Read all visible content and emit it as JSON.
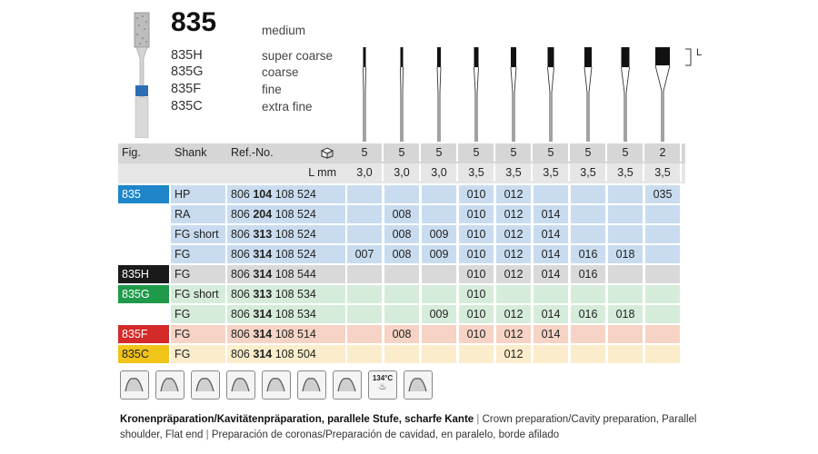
{
  "header": {
    "number": "835",
    "grade_default": "medium",
    "variants": [
      {
        "code": "835H",
        "grade": "super coarse"
      },
      {
        "code": "835G",
        "grade": "coarse"
      },
      {
        "code": "835F",
        "grade": "fine"
      },
      {
        "code": "835C",
        "grade": "extra fine"
      }
    ],
    "length_marker": "L"
  },
  "table": {
    "col_headers": {
      "fig": "Fig.",
      "shank": "Shank",
      "ref": "Ref.-No."
    },
    "pack_row": [
      "5",
      "5",
      "5",
      "5",
      "5",
      "5",
      "5",
      "5",
      "2"
    ],
    "lmm_label": "L mm",
    "lmm_row": [
      "3,0",
      "3,0",
      "3,0",
      "3,5",
      "3,5",
      "3,5",
      "3,5",
      "3,5",
      "3,5"
    ],
    "rows": [
      {
        "fig": "835",
        "shank": "HP",
        "ref_a": "806",
        "ref_b": "104",
        "ref_c": "108 524",
        "sizes": [
          "",
          "",
          "",
          "010",
          "012",
          "",
          "",
          "",
          "035"
        ],
        "fig_color": "#1e86c8",
        "row_color": "#c9dcef"
      },
      {
        "fig": "",
        "shank": "RA",
        "ref_a": "806",
        "ref_b": "204",
        "ref_c": "108 524",
        "sizes": [
          "",
          "008",
          "",
          "010",
          "012",
          "014",
          "",
          "",
          ""
        ],
        "fig_color": "",
        "row_color": "#c9dcef"
      },
      {
        "fig": "",
        "shank": "FG short",
        "ref_a": "806",
        "ref_b": "313",
        "ref_c": "108 524",
        "sizes": [
          "",
          "008",
          "009",
          "010",
          "012",
          "014",
          "",
          "",
          ""
        ],
        "fig_color": "",
        "row_color": "#c9dcef"
      },
      {
        "fig": "",
        "shank": "FG",
        "ref_a": "806",
        "ref_b": "314",
        "ref_c": "108 524",
        "sizes": [
          "007",
          "008",
          "009",
          "010",
          "012",
          "014",
          "016",
          "018",
          ""
        ],
        "fig_color": "",
        "row_color": "#c9dcef"
      },
      {
        "fig": "835H",
        "shank": "FG",
        "ref_a": "806",
        "ref_b": "314",
        "ref_c": "108 544",
        "sizes": [
          "",
          "",
          "",
          "010",
          "012",
          "014",
          "016",
          "",
          ""
        ],
        "fig_color": "#1a1a1a",
        "row_color": "#d9d9d9"
      },
      {
        "fig": "835G",
        "shank": "FG short",
        "ref_a": "806",
        "ref_b": "313",
        "ref_c": "108 534",
        "sizes": [
          "",
          "",
          "",
          "010",
          "",
          "",
          "",
          "",
          ""
        ],
        "fig_color": "#1f9a4b",
        "row_color": "#d6ecdb"
      },
      {
        "fig": "",
        "shank": "FG",
        "ref_a": "806",
        "ref_b": "314",
        "ref_c": "108 534",
        "sizes": [
          "",
          "",
          "009",
          "010",
          "012",
          "014",
          "016",
          "018",
          ""
        ],
        "fig_color": "",
        "row_color": "#d6ecdb"
      },
      {
        "fig": "835F",
        "shank": "FG",
        "ref_a": "806",
        "ref_b": "314",
        "ref_c": "108 514",
        "sizes": [
          "",
          "008",
          "",
          "010",
          "012",
          "014",
          "",
          "",
          ""
        ],
        "fig_color": "#d42a2a",
        "row_color": "#f6d3c4"
      },
      {
        "fig": "835C",
        "shank": "FG",
        "ref_a": "806",
        "ref_b": "314",
        "ref_c": "108 504",
        "sizes": [
          "",
          "",
          "",
          "",
          "012",
          "",
          "",
          "",
          ""
        ],
        "fig_color": "#f0c419",
        "row_color": "#fbeccb"
      }
    ]
  },
  "icons": [
    "cavity-icon",
    "molar-icon",
    "crown-prep-icon",
    "tooth-cut-icon",
    "handpiece-icon",
    "bridge-icon",
    "veneer-icon",
    "sterilize-icon",
    "polish-icon"
  ],
  "sterilize_label": "134°C",
  "description": {
    "de": "Kronenpräparation/Kavitätenpräparation, parallele Stufe, scharfe Kante",
    "sep": "|",
    "en": "Crown preparation/Cavity preparation, Parallel shoulder, Flat end",
    "es": "Preparación de coronas/Preparación de cavidad, en paralelo, borde afilado"
  }
}
